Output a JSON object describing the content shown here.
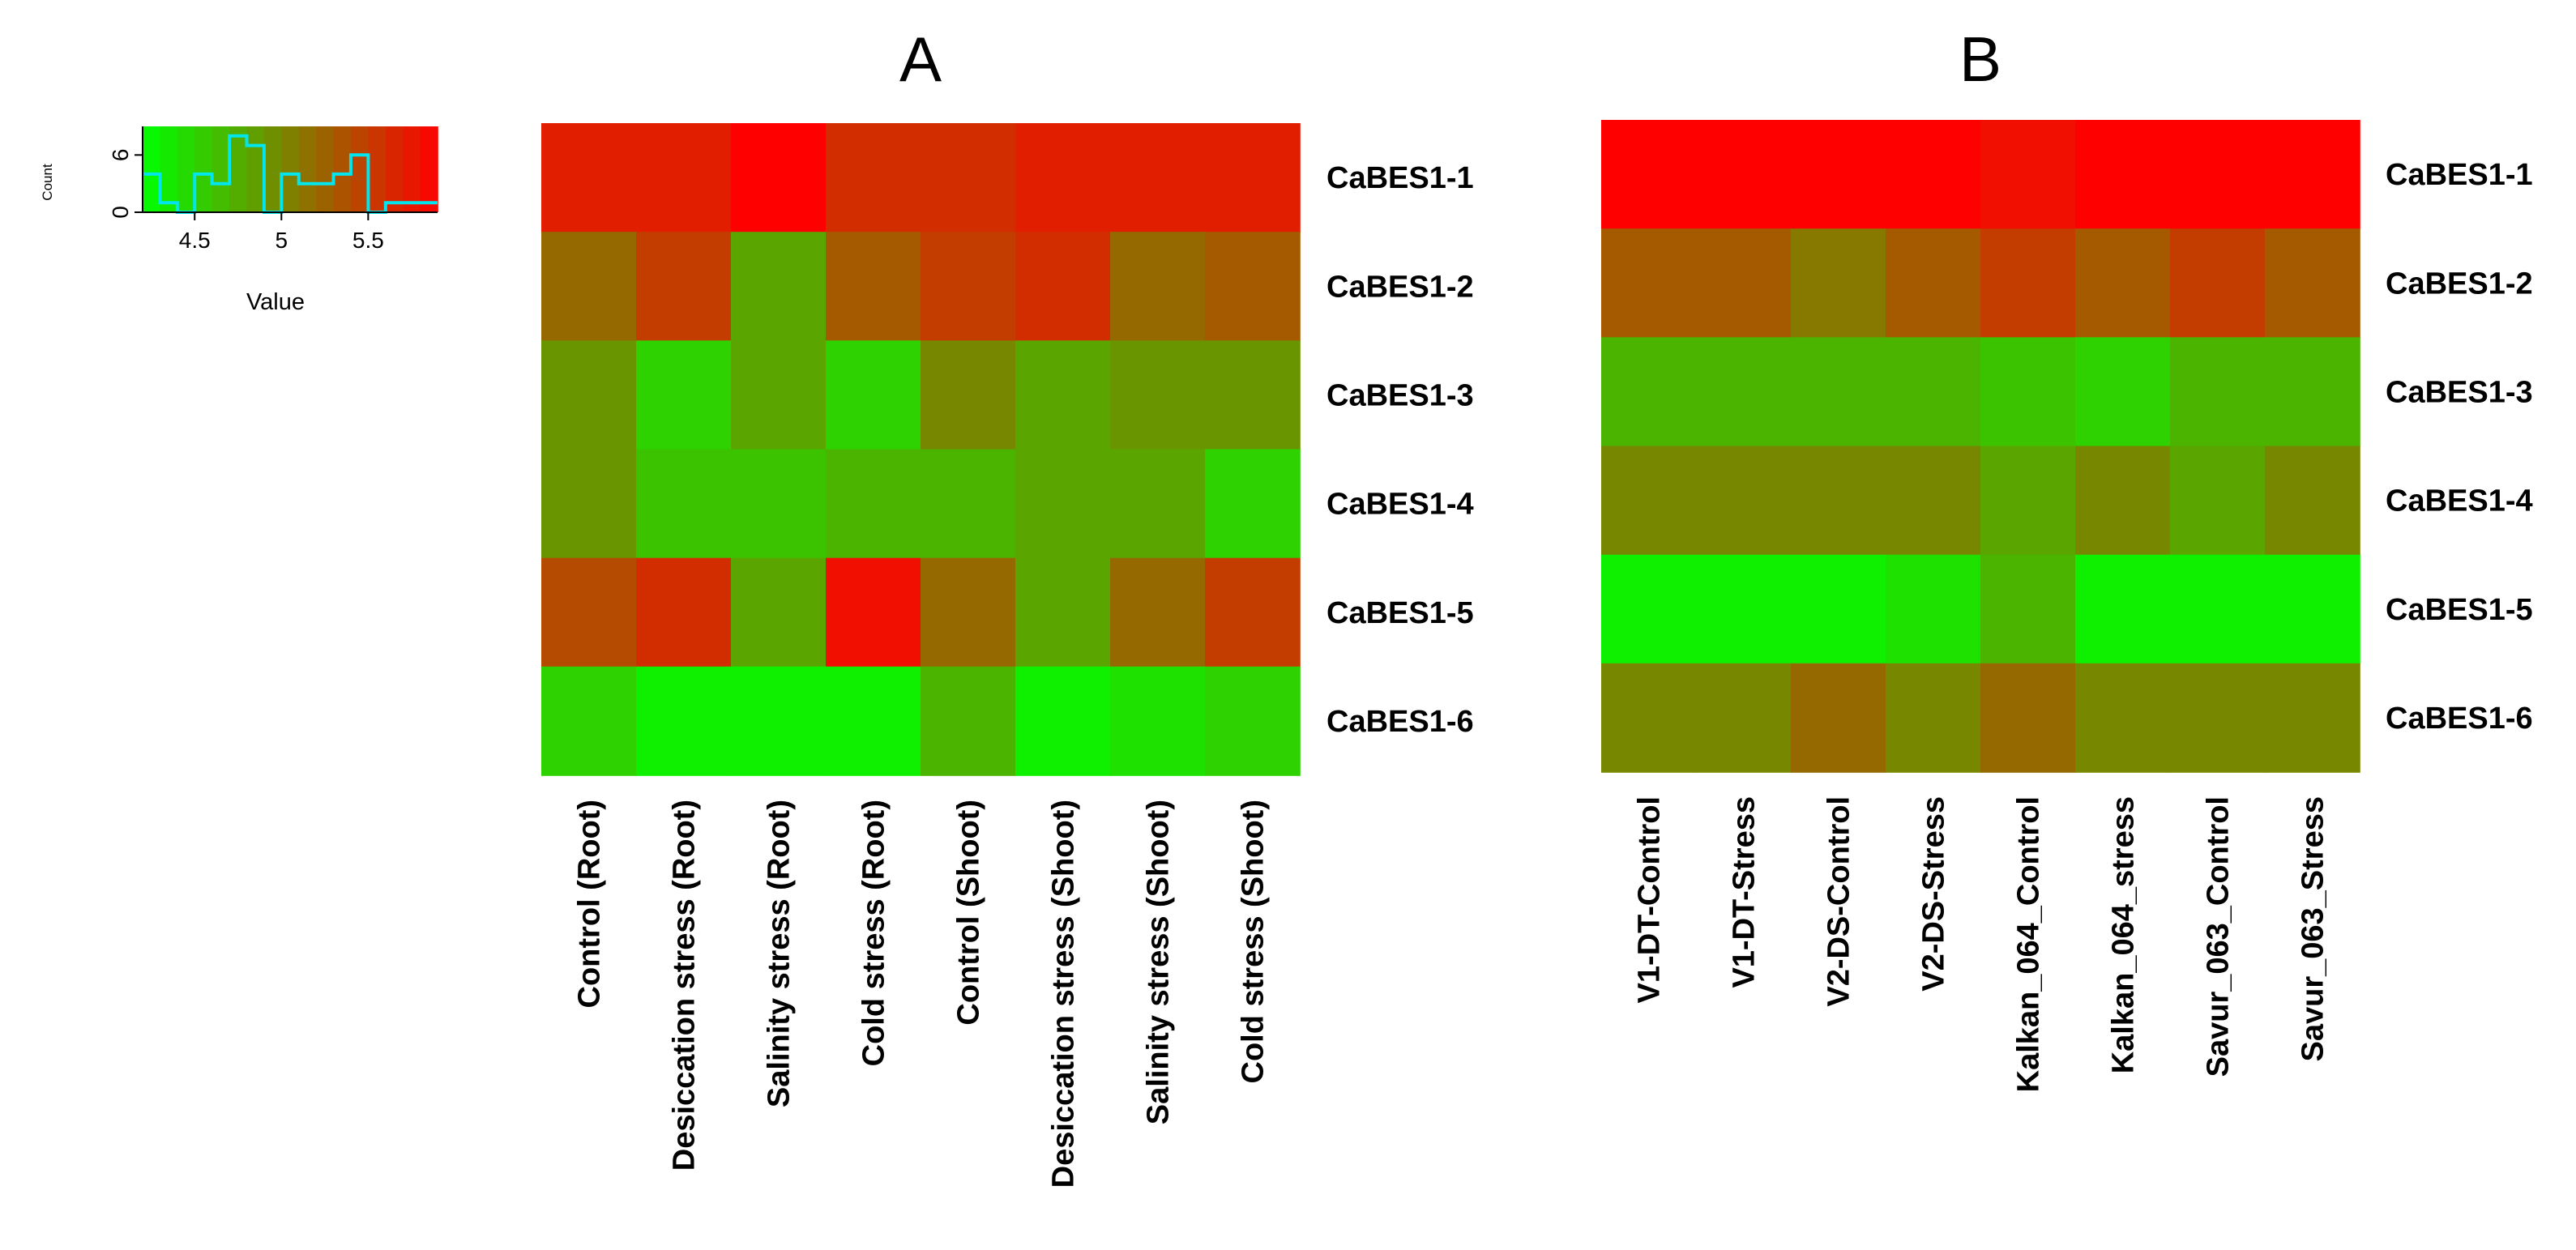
{
  "chart_data": [
    {
      "id": "A",
      "type": "heatmap",
      "title": "A",
      "rows": [
        "CaBES1-1",
        "CaBES1-2",
        "CaBES1-3",
        "CaBES1-4",
        "CaBES1-5",
        "CaBES1-6"
      ],
      "columns": [
        "Control (Root)",
        "Desiccation stress (Root)",
        "Salinity stress (Root)",
        "Cold stress (Root)",
        "Control (Shoot)",
        "Desiccation stress (Shoot)",
        "Salinity stress (Shoot)",
        "Cold stress (Shoot)"
      ],
      "values": [
        [
          5.7,
          5.7,
          5.9,
          5.6,
          5.6,
          5.7,
          5.7,
          5.7
        ],
        [
          5.2,
          5.5,
          4.8,
          5.3,
          5.5,
          5.6,
          5.2,
          5.3
        ],
        [
          4.9,
          4.5,
          4.8,
          4.5,
          5.0,
          4.8,
          4.9,
          4.9
        ],
        [
          4.9,
          4.6,
          4.6,
          4.7,
          4.7,
          4.8,
          4.8,
          4.5
        ],
        [
          5.4,
          5.6,
          4.8,
          5.8,
          5.2,
          4.8,
          5.2,
          5.5
        ],
        [
          4.5,
          4.3,
          4.3,
          4.3,
          4.7,
          4.3,
          4.4,
          4.5
        ]
      ]
    },
    {
      "id": "B",
      "type": "heatmap",
      "title": "B",
      "rows": [
        "CaBES1-1",
        "CaBES1-2",
        "CaBES1-3",
        "CaBES1-4",
        "CaBES1-5",
        "CaBES1-6"
      ],
      "columns": [
        "V1-DT-Control",
        "V1-DT-Stress",
        "V2-DS-Control",
        "V2-DS-Stress",
        "Kalkan_064_Control",
        "Kalkan_064_stress",
        "Savur_063_Control",
        "Savur_063_Stress"
      ],
      "values": [
        [
          5.9,
          5.9,
          5.9,
          5.9,
          5.8,
          5.9,
          5.9,
          5.9
        ],
        [
          5.3,
          5.3,
          5.1,
          5.3,
          5.5,
          5.3,
          5.5,
          5.3
        ],
        [
          4.7,
          4.7,
          4.7,
          4.7,
          4.6,
          4.5,
          4.7,
          4.7
        ],
        [
          5.0,
          5.0,
          5.0,
          5.0,
          4.8,
          5.0,
          4.8,
          5.0
        ],
        [
          4.3,
          4.3,
          4.3,
          4.4,
          4.7,
          4.3,
          4.3,
          4.3
        ],
        [
          5.0,
          5.0,
          5.2,
          5.0,
          5.2,
          5.0,
          5.0,
          5.0
        ]
      ]
    },
    {
      "id": "color_key",
      "type": "histogram",
      "xlabel": "Value",
      "ylabel": "Count",
      "x_ticks": [
        "4.5",
        "5",
        "5.5"
      ],
      "y_ticks": [
        "0",
        "6"
      ],
      "xlim": [
        4.2,
        5.9
      ],
      "ylim": [
        0,
        9
      ],
      "bins": [
        {
          "from": 4.2,
          "to": 4.3,
          "count": 4
        },
        {
          "from": 4.3,
          "to": 4.4,
          "count": 1
        },
        {
          "from": 4.4,
          "to": 4.5,
          "count": 0
        },
        {
          "from": 4.5,
          "to": 4.6,
          "count": 4
        },
        {
          "from": 4.6,
          "to": 4.7,
          "count": 3
        },
        {
          "from": 4.7,
          "to": 4.8,
          "count": 8
        },
        {
          "from": 4.8,
          "to": 4.9,
          "count": 7
        },
        {
          "from": 4.9,
          "to": 5.0,
          "count": 0
        },
        {
          "from": 5.0,
          "to": 5.1,
          "count": 4
        },
        {
          "from": 5.1,
          "to": 5.2,
          "count": 3
        },
        {
          "from": 5.2,
          "to": 5.3,
          "count": 3
        },
        {
          "from": 5.3,
          "to": 5.4,
          "count": 4
        },
        {
          "from": 5.4,
          "to": 5.5,
          "count": 6
        },
        {
          "from": 5.5,
          "to": 5.6,
          "count": 0
        },
        {
          "from": 5.6,
          "to": 5.7,
          "count": 1
        },
        {
          "from": 5.7,
          "to": 5.8,
          "count": 1
        },
        {
          "from": 5.8,
          "to": 5.9,
          "count": 1
        }
      ],
      "color_low": "#00ff00",
      "color_high": "#ff0000",
      "histogram_color": "#00e5ee"
    }
  ]
}
